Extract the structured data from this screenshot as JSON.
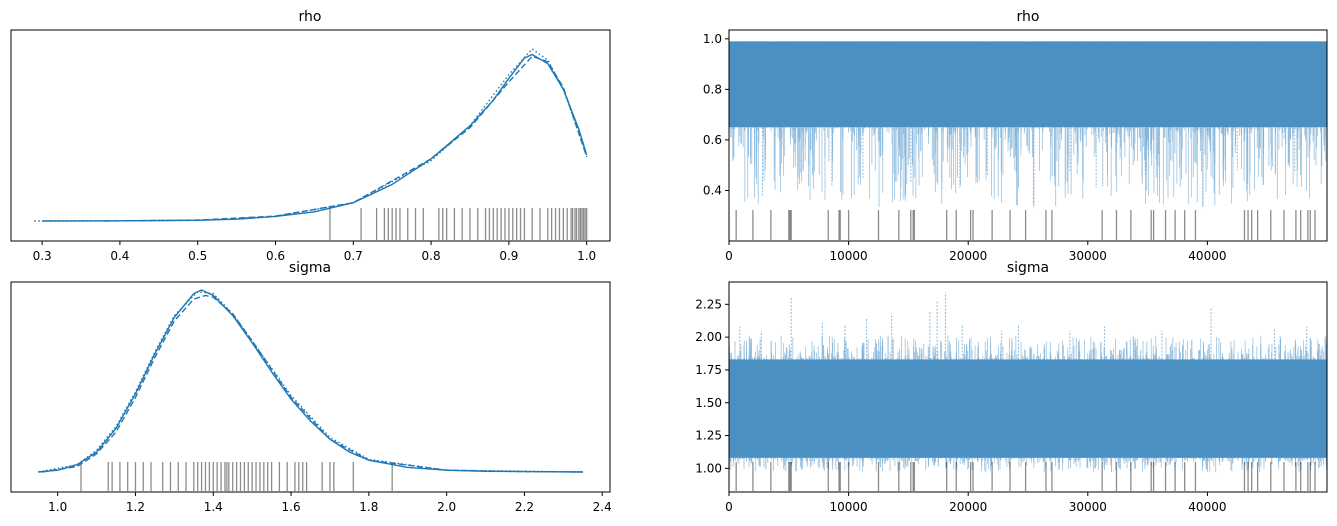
{
  "chart_data": [
    {
      "panel": "kde",
      "type": "line",
      "title": "rho",
      "xlabel": "",
      "ylabel": "",
      "xlim": [
        0.26,
        1.03
      ],
      "xticks": [
        "0.3",
        "0.4",
        "0.5",
        "0.6",
        "0.7",
        "0.8",
        "0.9",
        "1.0"
      ],
      "yticks": [],
      "series_color": "#1f77b4",
      "series": [
        {
          "style": "solid",
          "x": [
            0.3,
            0.4,
            0.5,
            0.55,
            0.6,
            0.65,
            0.7,
            0.75,
            0.8,
            0.85,
            0.88,
            0.9,
            0.92,
            0.93,
            0.95,
            0.97,
            0.99,
            1.0
          ],
          "y": [
            0.0,
            0.001,
            0.004,
            0.01,
            0.025,
            0.05,
            0.1,
            0.2,
            0.34,
            0.52,
            0.66,
            0.78,
            0.89,
            0.91,
            0.86,
            0.72,
            0.5,
            0.36
          ]
        },
        {
          "style": "dashed",
          "x": [
            0.38,
            0.5,
            0.6,
            0.7,
            0.8,
            0.85,
            0.9,
            0.93,
            0.95,
            0.97,
            1.0
          ],
          "y": [
            0.0,
            0.005,
            0.027,
            0.1,
            0.34,
            0.51,
            0.76,
            0.9,
            0.87,
            0.73,
            0.35
          ]
        },
        {
          "style": "dotted",
          "x": [
            0.29,
            0.4,
            0.5,
            0.6,
            0.7,
            0.8,
            0.85,
            0.9,
            0.93,
            0.95,
            0.97,
            1.0
          ],
          "y": [
            0.0,
            0.001,
            0.004,
            0.025,
            0.1,
            0.33,
            0.52,
            0.8,
            0.94,
            0.88,
            0.72,
            0.36
          ]
        }
      ],
      "rug": [
        0.67,
        0.71,
        0.73,
        0.74,
        0.745,
        0.75,
        0.755,
        0.76,
        0.77,
        0.78,
        0.79,
        0.81,
        0.815,
        0.82,
        0.83,
        0.84,
        0.85,
        0.86,
        0.87,
        0.875,
        0.88,
        0.885,
        0.89,
        0.895,
        0.9,
        0.905,
        0.91,
        0.915,
        0.92,
        0.93,
        0.94,
        0.95,
        0.955,
        0.96,
        0.965,
        0.97,
        0.975,
        0.98,
        0.982,
        0.985,
        0.987,
        0.99,
        0.992,
        0.994,
        0.996,
        0.998,
        1.0
      ]
    },
    {
      "panel": "trace",
      "type": "line",
      "title": "rho",
      "xlabel": "",
      "ylabel": "",
      "xlim": [
        0,
        50000
      ],
      "ylim": [
        0.2,
        1.035
      ],
      "xticks": [
        "0",
        "10000",
        "20000",
        "30000",
        "40000"
      ],
      "yticks": [
        "0.4",
        "0.6",
        "0.8",
        "1.0"
      ],
      "series_color": "#1f77b4",
      "band": {
        "typical_low": 0.65,
        "typical_high": 0.99,
        "max": 0.995,
        "min_observed": 0.33
      },
      "dips": [
        [
          2800,
          0.38
        ],
        [
          8600,
          0.42
        ],
        [
          11200,
          0.45
        ],
        [
          15200,
          0.43
        ],
        [
          17800,
          0.4
        ],
        [
          19300,
          0.41
        ],
        [
          21600,
          0.46
        ],
        [
          25500,
          0.33
        ],
        [
          28500,
          0.47
        ],
        [
          30700,
          0.41
        ],
        [
          34800,
          0.46
        ],
        [
          36000,
          0.44
        ],
        [
          39600,
          0.33
        ],
        [
          42500,
          0.48
        ],
        [
          47300,
          0.47
        ]
      ],
      "rug": [
        600,
        2000,
        3500,
        5000,
        5100,
        5200,
        8300,
        9200,
        9300,
        10000,
        12500,
        14200,
        15200,
        15400,
        15500,
        18200,
        19000,
        20200,
        20400,
        22000,
        23500,
        24800,
        26500,
        27000,
        31200,
        32400,
        33600,
        35300,
        35500,
        36500,
        37300,
        38100,
        39000,
        43100,
        43400,
        43700,
        44200,
        45300,
        46400,
        47400,
        47800,
        48400,
        48600,
        49000
      ]
    },
    {
      "panel": "kde",
      "type": "line",
      "title": "sigma",
      "xlabel": "",
      "ylabel": "",
      "xlim": [
        0.88,
        2.42
      ],
      "xticks": [
        "1.0",
        "1.2",
        "1.4",
        "1.6",
        "1.8",
        "2.0",
        "2.2",
        "2.4"
      ],
      "yticks": [],
      "series_color": "#1f77b4",
      "series": [
        {
          "style": "solid",
          "x": [
            0.95,
            1.0,
            1.05,
            1.1,
            1.15,
            1.2,
            1.25,
            1.3,
            1.35,
            1.37,
            1.4,
            1.45,
            1.5,
            1.55,
            1.6,
            1.65,
            1.7,
            1.75,
            1.8,
            1.9,
            2.0,
            2.1,
            2.2,
            2.35
          ],
          "y": [
            0.0,
            0.01,
            0.04,
            0.11,
            0.24,
            0.43,
            0.65,
            0.85,
            0.98,
            1.0,
            0.97,
            0.86,
            0.71,
            0.55,
            0.4,
            0.28,
            0.18,
            0.11,
            0.065,
            0.025,
            0.01,
            0.004,
            0.002,
            0.0
          ]
        },
        {
          "style": "dashed",
          "x": [
            0.96,
            1.05,
            1.1,
            1.15,
            1.2,
            1.25,
            1.3,
            1.35,
            1.38,
            1.4,
            1.45,
            1.5,
            1.6,
            1.7,
            1.8,
            2.0,
            2.2,
            2.35
          ],
          "y": [
            0.0,
            0.03,
            0.1,
            0.22,
            0.41,
            0.63,
            0.83,
            0.95,
            0.97,
            0.96,
            0.87,
            0.72,
            0.41,
            0.18,
            0.065,
            0.01,
            0.002,
            0.0
          ]
        },
        {
          "style": "dotted",
          "x": [
            0.95,
            1.05,
            1.1,
            1.15,
            1.2,
            1.25,
            1.3,
            1.36,
            1.4,
            1.45,
            1.5,
            1.6,
            1.7,
            1.8,
            2.0,
            2.35
          ],
          "y": [
            0.0,
            0.04,
            0.12,
            0.25,
            0.44,
            0.66,
            0.86,
            0.99,
            0.98,
            0.87,
            0.72,
            0.42,
            0.19,
            0.07,
            0.01,
            0.0
          ]
        }
      ],
      "rug": [
        1.06,
        1.13,
        1.14,
        1.16,
        1.18,
        1.2,
        1.22,
        1.24,
        1.27,
        1.29,
        1.31,
        1.33,
        1.35,
        1.36,
        1.37,
        1.38,
        1.39,
        1.4,
        1.41,
        1.42,
        1.43,
        1.435,
        1.44,
        1.45,
        1.46,
        1.47,
        1.48,
        1.49,
        1.5,
        1.51,
        1.52,
        1.53,
        1.54,
        1.55,
        1.57,
        1.59,
        1.61,
        1.62,
        1.63,
        1.64,
        1.68,
        1.7,
        1.71,
        1.76,
        1.86
      ]
    },
    {
      "panel": "trace",
      "type": "line",
      "title": "sigma",
      "xlabel": "",
      "ylabel": "",
      "xlim": [
        0,
        50000
      ],
      "ylim": [
        0.82,
        2.42
      ],
      "xticks": [
        "0",
        "10000",
        "20000",
        "30000",
        "40000"
      ],
      "yticks": [
        "1.00",
        "1.25",
        "1.50",
        "1.75",
        "2.00",
        "2.25"
      ],
      "series_color": "#1f77b4",
      "band": {
        "typical_low": 1.08,
        "typical_high": 1.83,
        "max": 2.35,
        "min_observed": 0.97
      },
      "spikes": [
        [
          900,
          2.08
        ],
        [
          2700,
          2.05
        ],
        [
          5200,
          2.3
        ],
        [
          7800,
          2.12
        ],
        [
          9700,
          2.1
        ],
        [
          11500,
          2.14
        ],
        [
          13600,
          2.18
        ],
        [
          16800,
          2.2
        ],
        [
          17400,
          2.28
        ],
        [
          18100,
          2.34
        ],
        [
          19500,
          2.1
        ],
        [
          22800,
          2.05
        ],
        [
          24200,
          2.1
        ],
        [
          28500,
          2.05
        ],
        [
          31400,
          2.08
        ],
        [
          33800,
          2.02
        ],
        [
          36200,
          2.05
        ],
        [
          40300,
          2.22
        ],
        [
          45600,
          2.06
        ],
        [
          48300,
          2.08
        ]
      ],
      "rug": [
        600,
        2000,
        3500,
        5000,
        5100,
        5200,
        8300,
        9200,
        9300,
        10000,
        12500,
        14200,
        15200,
        15400,
        15500,
        18200,
        19000,
        20200,
        20400,
        22000,
        23500,
        24800,
        26500,
        27000,
        31200,
        32400,
        33600,
        35300,
        35500,
        36500,
        37300,
        38100,
        39000,
        43100,
        43400,
        43700,
        44200,
        45300,
        46400,
        47400,
        47800,
        48400,
        48600,
        49000
      ]
    }
  ]
}
